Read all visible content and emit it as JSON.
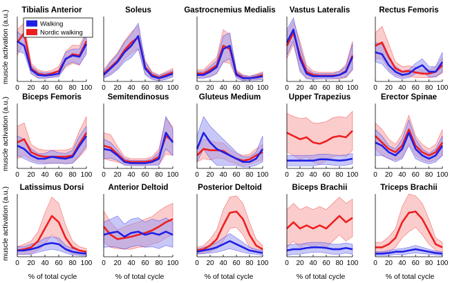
{
  "figure": {
    "ylabel": "muscle activation (a.u.)",
    "xlabel": "% of total cycle",
    "legend": [
      "Walking",
      "Nordic walking"
    ],
    "colors": {
      "walking": "#1f1fe6",
      "nordic": "#ee1f1f",
      "walking_band": "#9a9af2",
      "nordic_band": "#f7a3a3"
    }
  },
  "chart_data": {
    "type": "line",
    "x": [
      0,
      10,
      20,
      30,
      40,
      50,
      60,
      70,
      80,
      90,
      100
    ],
    "xticks": [
      "0",
      "20",
      "40",
      "60",
      "80",
      "100"
    ],
    "xlim": [
      0,
      100
    ],
    "ylim": [
      0,
      1
    ],
    "grid": false,
    "legend_placement": "top-left of first panel",
    "series_names": [
      "Walking",
      "Nordic walking"
    ],
    "panels": [
      {
        "title": "Tibialis Anterior",
        "walking": {
          "mean": [
            0.62,
            0.55,
            0.18,
            0.1,
            0.09,
            0.1,
            0.12,
            0.35,
            0.4,
            0.38,
            0.58
          ],
          "sd": [
            0.15,
            0.12,
            0.06,
            0.05,
            0.04,
            0.04,
            0.05,
            0.1,
            0.1,
            0.12,
            0.16
          ]
        },
        "nordic": {
          "mean": [
            0.6,
            0.75,
            0.2,
            0.12,
            0.1,
            0.12,
            0.16,
            0.34,
            0.42,
            0.4,
            0.62
          ],
          "sd": [
            0.2,
            0.15,
            0.08,
            0.06,
            0.05,
            0.05,
            0.07,
            0.12,
            0.14,
            0.15,
            0.15
          ]
        }
      },
      {
        "title": "Soleus",
        "walking": {
          "mean": [
            0.1,
            0.2,
            0.3,
            0.45,
            0.55,
            0.7,
            0.2,
            0.08,
            0.05,
            0.08,
            0.12
          ],
          "sd": [
            0.05,
            0.1,
            0.12,
            0.15,
            0.18,
            0.2,
            0.1,
            0.05,
            0.04,
            0.05,
            0.05
          ]
        },
        "nordic": {
          "mean": [
            0.12,
            0.22,
            0.32,
            0.48,
            0.6,
            0.68,
            0.22,
            0.1,
            0.06,
            0.1,
            0.14
          ],
          "sd": [
            0.06,
            0.1,
            0.12,
            0.14,
            0.16,
            0.18,
            0.1,
            0.05,
            0.04,
            0.05,
            0.06
          ]
        }
      },
      {
        "title": "Gastrocnemius Medialis",
        "walking": {
          "mean": [
            0.1,
            0.1,
            0.15,
            0.22,
            0.5,
            0.55,
            0.1,
            0.05,
            0.05,
            0.06,
            0.08
          ],
          "sd": [
            0.05,
            0.05,
            0.08,
            0.1,
            0.2,
            0.2,
            0.05,
            0.04,
            0.03,
            0.04,
            0.05
          ]
        },
        "nordic": {
          "mean": [
            0.12,
            0.12,
            0.18,
            0.25,
            0.55,
            0.5,
            0.12,
            0.06,
            0.05,
            0.07,
            0.1
          ],
          "sd": [
            0.06,
            0.06,
            0.1,
            0.12,
            0.25,
            0.22,
            0.06,
            0.04,
            0.03,
            0.04,
            0.05
          ]
        }
      },
      {
        "title": "Vastus Lateralis",
        "walking": {
          "mean": [
            0.6,
            0.8,
            0.35,
            0.12,
            0.08,
            0.08,
            0.08,
            0.08,
            0.1,
            0.15,
            0.38
          ],
          "sd": [
            0.2,
            0.18,
            0.2,
            0.08,
            0.05,
            0.04,
            0.04,
            0.04,
            0.05,
            0.08,
            0.2
          ]
        },
        "nordic": {
          "mean": [
            0.55,
            0.75,
            0.4,
            0.15,
            0.1,
            0.09,
            0.09,
            0.09,
            0.1,
            0.16,
            0.4
          ],
          "sd": [
            0.2,
            0.18,
            0.22,
            0.1,
            0.06,
            0.05,
            0.05,
            0.05,
            0.06,
            0.1,
            0.22
          ]
        }
      },
      {
        "title": "Rectus Femoris",
        "walking": {
          "mean": [
            0.45,
            0.42,
            0.25,
            0.15,
            0.1,
            0.12,
            0.2,
            0.25,
            0.15,
            0.15,
            0.3
          ],
          "sd": [
            0.15,
            0.15,
            0.1,
            0.08,
            0.06,
            0.06,
            0.08,
            0.1,
            0.08,
            0.08,
            0.15
          ]
        },
        "nordic": {
          "mean": [
            0.55,
            0.6,
            0.38,
            0.2,
            0.15,
            0.16,
            0.14,
            0.12,
            0.12,
            0.15,
            0.25
          ],
          "sd": [
            0.2,
            0.25,
            0.2,
            0.1,
            0.08,
            0.08,
            0.08,
            0.06,
            0.06,
            0.08,
            0.12
          ]
        }
      },
      {
        "title": "Biceps Femoris",
        "walking": {
          "mean": [
            0.35,
            0.3,
            0.2,
            0.15,
            0.15,
            0.18,
            0.16,
            0.15,
            0.18,
            0.35,
            0.5
          ],
          "sd": [
            0.15,
            0.15,
            0.1,
            0.08,
            0.08,
            0.1,
            0.08,
            0.08,
            0.1,
            0.15,
            0.15
          ]
        },
        "nordic": {
          "mean": [
            0.4,
            0.45,
            0.25,
            0.2,
            0.18,
            0.18,
            0.18,
            0.18,
            0.2,
            0.38,
            0.55
          ],
          "sd": [
            0.25,
            0.25,
            0.12,
            0.1,
            0.1,
            0.1,
            0.1,
            0.1,
            0.12,
            0.2,
            0.25
          ]
        }
      },
      {
        "title": "Semitendinosus",
        "walking": {
          "mean": [
            0.3,
            0.28,
            0.2,
            0.1,
            0.08,
            0.08,
            0.08,
            0.1,
            0.15,
            0.55,
            0.4
          ],
          "sd": [
            0.15,
            0.12,
            0.08,
            0.05,
            0.04,
            0.04,
            0.04,
            0.05,
            0.1,
            0.25,
            0.2
          ]
        },
        "nordic": {
          "mean": [
            0.35,
            0.32,
            0.22,
            0.12,
            0.1,
            0.1,
            0.1,
            0.12,
            0.18,
            0.5,
            0.42
          ],
          "sd": [
            0.2,
            0.2,
            0.12,
            0.06,
            0.05,
            0.05,
            0.05,
            0.06,
            0.12,
            0.28,
            0.22
          ]
        }
      },
      {
        "title": "Gluteus Medium",
        "walking": {
          "mean": [
            0.3,
            0.55,
            0.4,
            0.3,
            0.25,
            0.2,
            0.15,
            0.1,
            0.1,
            0.15,
            0.3
          ],
          "sd": [
            0.2,
            0.25,
            0.25,
            0.25,
            0.2,
            0.15,
            0.1,
            0.08,
            0.08,
            0.1,
            0.2
          ]
        },
        "nordic": {
          "mean": [
            0.2,
            0.3,
            0.28,
            0.28,
            0.27,
            0.2,
            0.15,
            0.12,
            0.14,
            0.2,
            0.25
          ],
          "sd": [
            0.1,
            0.15,
            0.15,
            0.12,
            0.12,
            0.1,
            0.08,
            0.08,
            0.08,
            0.1,
            0.12
          ]
        }
      },
      {
        "title": "Upper Trapezius",
        "walking": {
          "mean": [
            0.12,
            0.12,
            0.12,
            0.12,
            0.12,
            0.14,
            0.14,
            0.13,
            0.12,
            0.13,
            0.15
          ],
          "sd": [
            0.08,
            0.08,
            0.08,
            0.08,
            0.08,
            0.08,
            0.08,
            0.08,
            0.08,
            0.08,
            0.08
          ]
        },
        "nordic": {
          "mean": [
            0.55,
            0.5,
            0.45,
            0.48,
            0.4,
            0.38,
            0.42,
            0.48,
            0.5,
            0.48,
            0.58
          ],
          "sd": [
            0.3,
            0.3,
            0.32,
            0.3,
            0.3,
            0.32,
            0.3,
            0.3,
            0.3,
            0.3,
            0.3
          ]
        }
      },
      {
        "title": "Erector Spinae",
        "walking": {
          "mean": [
            0.4,
            0.35,
            0.25,
            0.2,
            0.3,
            0.55,
            0.3,
            0.2,
            0.15,
            0.2,
            0.35
          ],
          "sd": [
            0.2,
            0.15,
            0.1,
            0.1,
            0.15,
            0.2,
            0.15,
            0.1,
            0.08,
            0.1,
            0.15
          ]
        },
        "nordic": {
          "mean": [
            0.5,
            0.4,
            0.3,
            0.25,
            0.35,
            0.6,
            0.35,
            0.25,
            0.2,
            0.25,
            0.4
          ],
          "sd": [
            0.2,
            0.2,
            0.15,
            0.12,
            0.18,
            0.22,
            0.15,
            0.12,
            0.1,
            0.12,
            0.2
          ]
        }
      },
      {
        "title": "Latissimus Dorsi",
        "walking": {
          "mean": [
            0.1,
            0.1,
            0.12,
            0.15,
            0.2,
            0.22,
            0.2,
            0.12,
            0.08,
            0.06,
            0.05
          ],
          "sd": [
            0.06,
            0.06,
            0.08,
            0.08,
            0.1,
            0.1,
            0.1,
            0.06,
            0.05,
            0.04,
            0.04
          ]
        },
        "nordic": {
          "mean": [
            0.1,
            0.12,
            0.15,
            0.25,
            0.45,
            0.65,
            0.55,
            0.3,
            0.15,
            0.1,
            0.08
          ],
          "sd": [
            0.06,
            0.08,
            0.1,
            0.15,
            0.25,
            0.3,
            0.3,
            0.2,
            0.1,
            0.06,
            0.05
          ]
        }
      },
      {
        "title": "Anterior Deltoid",
        "walking": {
          "mean": [
            0.35,
            0.38,
            0.4,
            0.32,
            0.38,
            0.4,
            0.35,
            0.38,
            0.35,
            0.4,
            0.35
          ],
          "sd": [
            0.2,
            0.22,
            0.25,
            0.2,
            0.22,
            0.22,
            0.2,
            0.22,
            0.22,
            0.22,
            0.2
          ]
        },
        "nordic": {
          "mean": [
            0.48,
            0.35,
            0.28,
            0.3,
            0.32,
            0.35,
            0.38,
            0.42,
            0.48,
            0.55,
            0.6
          ],
          "sd": [
            0.25,
            0.2,
            0.15,
            0.18,
            0.2,
            0.2,
            0.22,
            0.22,
            0.25,
            0.25,
            0.25
          ]
        }
      },
      {
        "title": "Posterior Deltoid",
        "walking": {
          "mean": [
            0.08,
            0.1,
            0.12,
            0.15,
            0.2,
            0.25,
            0.2,
            0.15,
            0.1,
            0.08,
            0.06
          ],
          "sd": [
            0.04,
            0.05,
            0.06,
            0.08,
            0.1,
            0.12,
            0.1,
            0.08,
            0.05,
            0.04,
            0.04
          ]
        },
        "nordic": {
          "mean": [
            0.1,
            0.12,
            0.18,
            0.28,
            0.5,
            0.7,
            0.72,
            0.6,
            0.35,
            0.18,
            0.12
          ],
          "sd": [
            0.05,
            0.06,
            0.1,
            0.15,
            0.25,
            0.25,
            0.25,
            0.25,
            0.2,
            0.1,
            0.06
          ]
        }
      },
      {
        "title": "Biceps Brachii",
        "walking": {
          "mean": [
            0.1,
            0.12,
            0.12,
            0.14,
            0.15,
            0.15,
            0.14,
            0.12,
            0.12,
            0.14,
            0.12
          ],
          "sd": [
            0.08,
            0.08,
            0.08,
            0.08,
            0.08,
            0.08,
            0.08,
            0.08,
            0.08,
            0.08,
            0.08
          ]
        },
        "nordic": {
          "mean": [
            0.45,
            0.55,
            0.45,
            0.5,
            0.45,
            0.5,
            0.45,
            0.55,
            0.65,
            0.55,
            0.62
          ],
          "sd": [
            0.3,
            0.3,
            0.3,
            0.3,
            0.3,
            0.3,
            0.3,
            0.3,
            0.3,
            0.3,
            0.3
          ]
        }
      },
      {
        "title": "Triceps Brachii",
        "walking": {
          "mean": [
            0.05,
            0.05,
            0.06,
            0.08,
            0.08,
            0.1,
            0.12,
            0.1,
            0.08,
            0.06,
            0.05
          ],
          "sd": [
            0.03,
            0.03,
            0.04,
            0.04,
            0.05,
            0.05,
            0.06,
            0.05,
            0.04,
            0.03,
            0.03
          ]
        },
        "nordic": {
          "mean": [
            0.15,
            0.15,
            0.2,
            0.3,
            0.55,
            0.7,
            0.72,
            0.6,
            0.4,
            0.2,
            0.15
          ],
          "sd": [
            0.08,
            0.08,
            0.12,
            0.15,
            0.25,
            0.3,
            0.25,
            0.25,
            0.2,
            0.1,
            0.08
          ]
        }
      }
    ]
  }
}
